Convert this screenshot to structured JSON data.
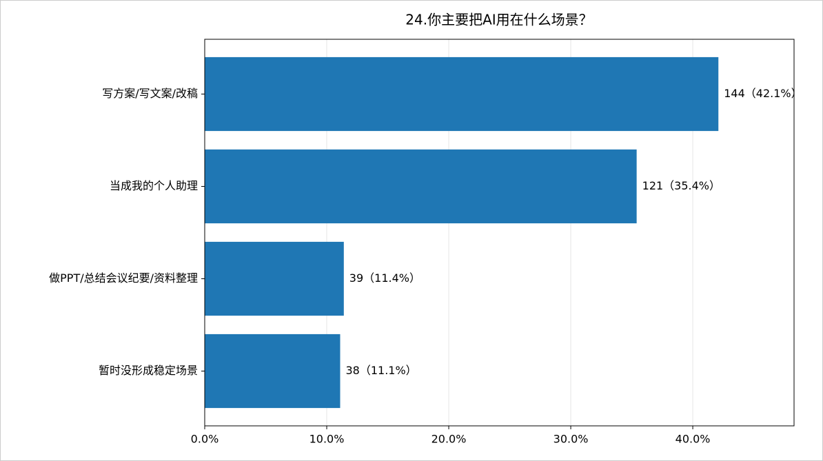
{
  "chart_data": {
    "type": "bar",
    "orientation": "horizontal",
    "title": "24.你主要把AI用在什么场景？",
    "categories": [
      "写方案/写文案/改稿",
      "当成我的个人助理",
      "做PPT/总结会议纪要/资料整理",
      "暂时没形成稳定场景"
    ],
    "values": [
      42.1,
      35.4,
      11.4,
      11.1
    ],
    "value_labels": [
      "144（42.1%）",
      "121（35.4%）",
      "39（11.4%）",
      "38（11.1%）"
    ],
    "color": "#1f77b4",
    "xlim": [
      0,
      48.3
    ],
    "xticks": [
      {
        "value": 0,
        "label": "0.0%"
      },
      {
        "value": 10,
        "label": "10.0%"
      },
      {
        "value": 20,
        "label": "20.0%"
      },
      {
        "value": 30,
        "label": "30.0%"
      },
      {
        "value": 40,
        "label": "40.0%"
      }
    ],
    "grid": true
  }
}
